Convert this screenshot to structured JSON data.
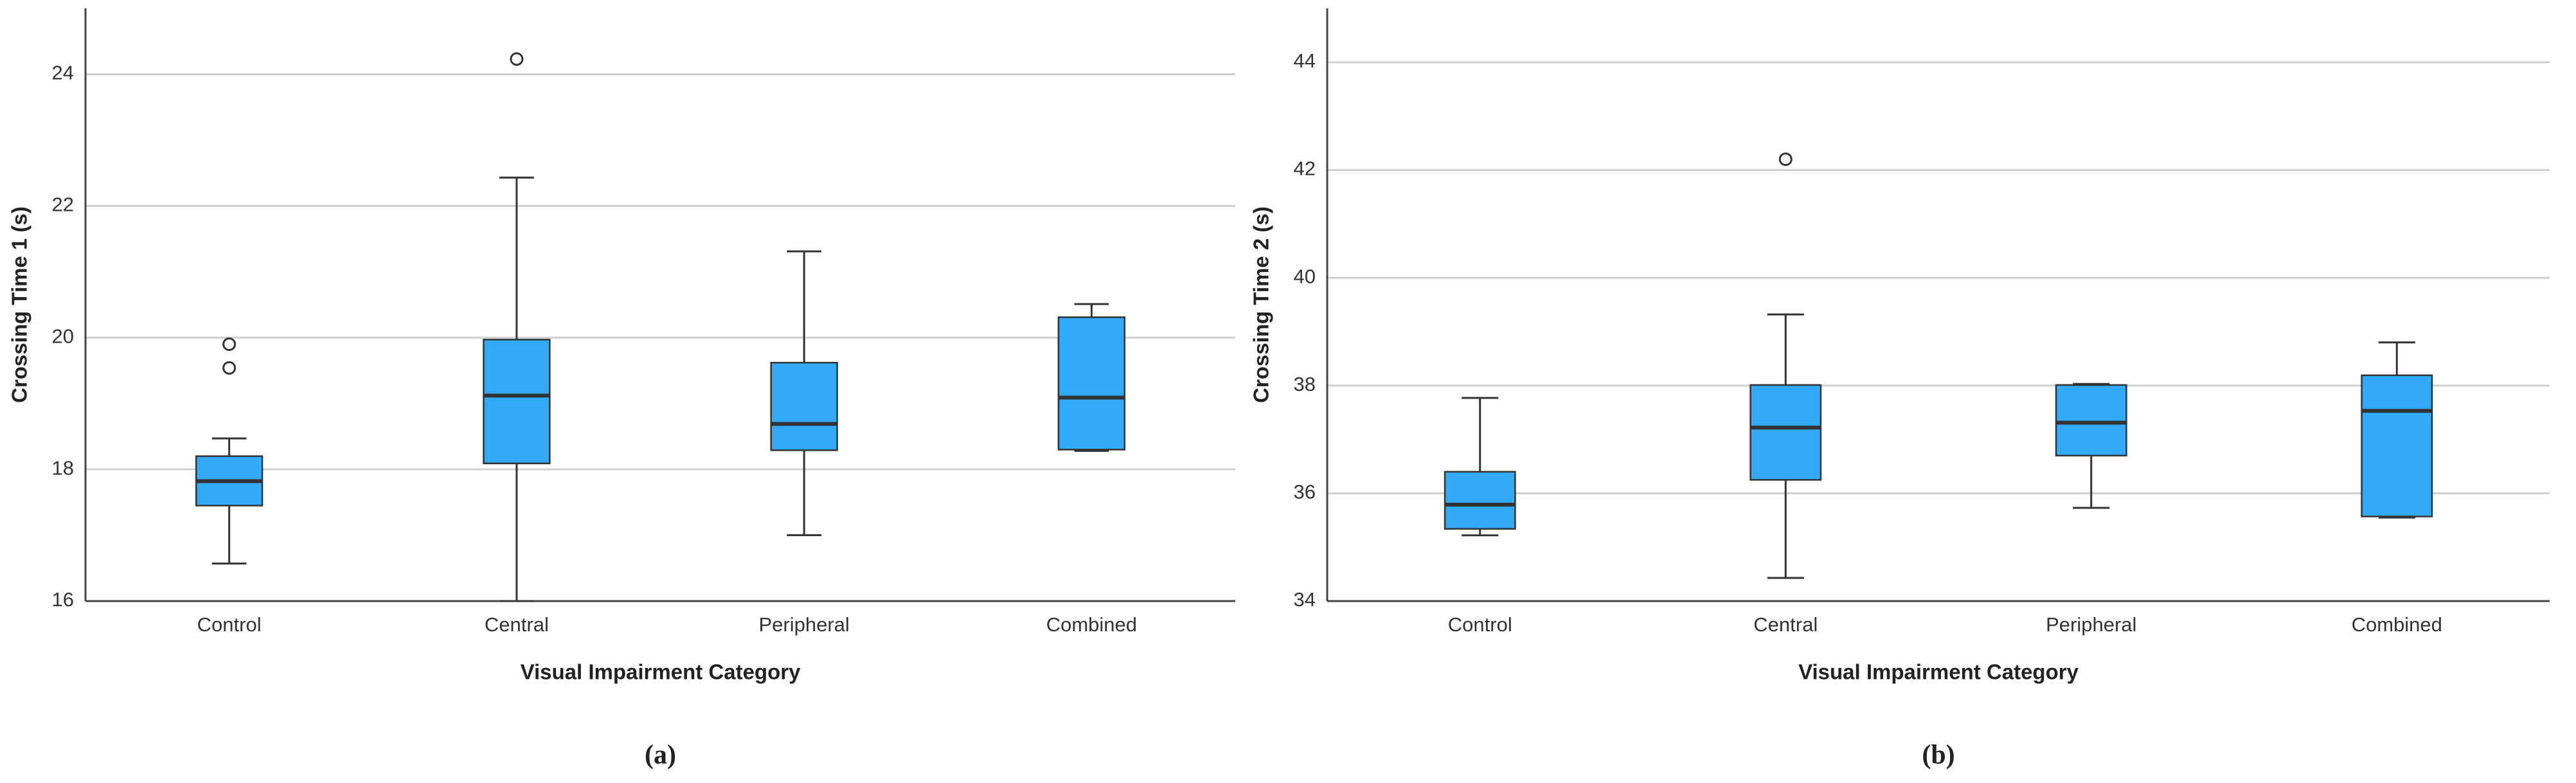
{
  "chart_data": [
    {
      "type": "box",
      "caption": "(a)",
      "x_label": "Visual Impairment Category",
      "y_label": "Crossing Time 1 (s)",
      "categories": [
        "Control",
        "Central",
        "Peripheral",
        "Combined"
      ],
      "color": "#33aaf7",
      "ylim": [
        16,
        25
      ],
      "yticks": [
        16,
        18,
        20,
        22,
        24
      ],
      "grid": true,
      "boxes": [
        {
          "min": 16.57,
          "q1": 17.45,
          "median": 17.82,
          "q3": 18.2,
          "max": 18.47,
          "outliers": [
            19.9,
            19.54
          ]
        },
        {
          "min": 16.0,
          "q1": 18.09,
          "median": 19.12,
          "q3": 19.97,
          "max": 22.43,
          "outliers": [
            24.23
          ]
        },
        {
          "min": 17.0,
          "q1": 18.29,
          "median": 18.69,
          "q3": 19.62,
          "max": 21.31,
          "outliers": []
        },
        {
          "min": 18.28,
          "q1": 18.3,
          "median": 19.09,
          "q3": 20.31,
          "max": 20.51,
          "outliers": []
        }
      ]
    },
    {
      "type": "box",
      "caption": "(b)",
      "x_label": "Visual Impairment Category",
      "y_label": "Crossing Time 2 (s)",
      "categories": [
        "Control",
        "Central",
        "Peripheral",
        "Combined"
      ],
      "color": "#33aaf7",
      "ylim": [
        34,
        45
      ],
      "yticks": [
        34,
        36,
        38,
        40,
        42,
        44
      ],
      "grid": true,
      "boxes": [
        {
          "min": 35.22,
          "q1": 35.34,
          "median": 35.79,
          "q3": 36.4,
          "max": 37.77,
          "outliers": []
        },
        {
          "min": 34.43,
          "q1": 36.25,
          "median": 37.22,
          "q3": 38.01,
          "max": 39.32,
          "outliers": [
            42.2
          ]
        },
        {
          "min": 35.73,
          "q1": 36.7,
          "median": 37.31,
          "q3": 38.01,
          "max": 38.03,
          "outliers": []
        },
        {
          "min": 35.55,
          "q1": 35.57,
          "median": 37.53,
          "q3": 38.19,
          "max": 38.8,
          "outliers": []
        }
      ]
    }
  ]
}
